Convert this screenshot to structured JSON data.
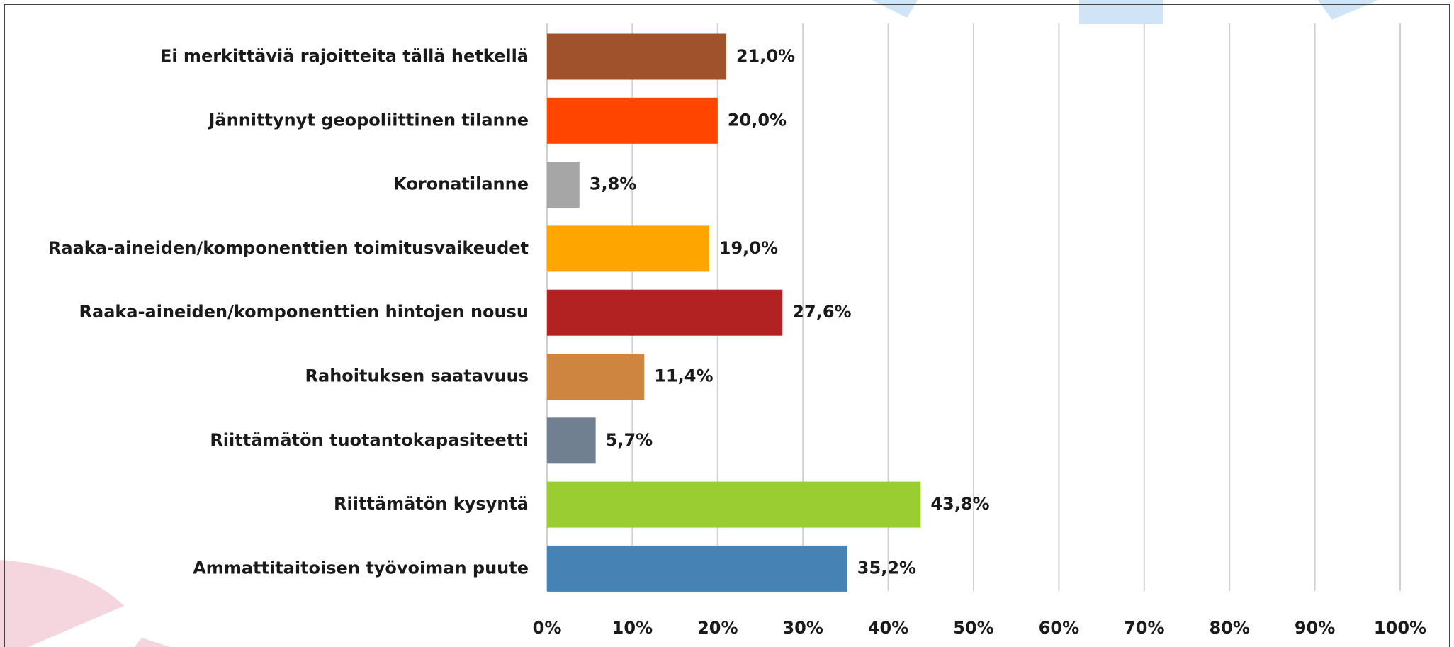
{
  "chart_data": {
    "type": "bar",
    "orientation": "horizontal",
    "categories": [
      "Ei merkittäviä rajoitteita tällä hetkellä",
      "Jännittynyt geopoliittinen tilanne",
      "Koronatilanne",
      "Raaka-aineiden/komponenttien toimitusvaikeudet",
      "Raaka-aineiden/komponenttien hintojen nousu",
      "Rahoituksen saatavuus",
      "Riittämätön tuotantokapasiteetti",
      "Riittämätön kysyntä",
      "Ammattitaitoisen työvoiman puute"
    ],
    "values": [
      21.0,
      20.0,
      3.8,
      19.0,
      27.6,
      11.4,
      5.7,
      43.8,
      35.2
    ],
    "value_labels": [
      "21,0%",
      "20,0%",
      "3,8%",
      "19,0%",
      "27,6%",
      "11,4%",
      "5,7%",
      "43,8%",
      "35,2%"
    ],
    "colors": [
      "#a0522d",
      "#ff4500",
      "#a6a6a6",
      "#ffa500",
      "#b22222",
      "#cd853f",
      "#708090",
      "#9acd32",
      "#4682b4"
    ],
    "xlim": [
      0,
      100
    ],
    "xticks": [
      {
        "value": 0,
        "label": "0%"
      },
      {
        "value": 10,
        "label": "10%"
      },
      {
        "value": 20,
        "label": "20%"
      },
      {
        "value": 30,
        "label": "30%"
      },
      {
        "value": 40,
        "label": "40%"
      },
      {
        "value": 50,
        "label": "50%"
      },
      {
        "value": 60,
        "label": "60%"
      },
      {
        "value": 70,
        "label": "70%"
      },
      {
        "value": 80,
        "label": "80%"
      },
      {
        "value": 90,
        "label": "90%"
      },
      {
        "value": 100,
        "label": "100%"
      }
    ],
    "grid": true
  }
}
